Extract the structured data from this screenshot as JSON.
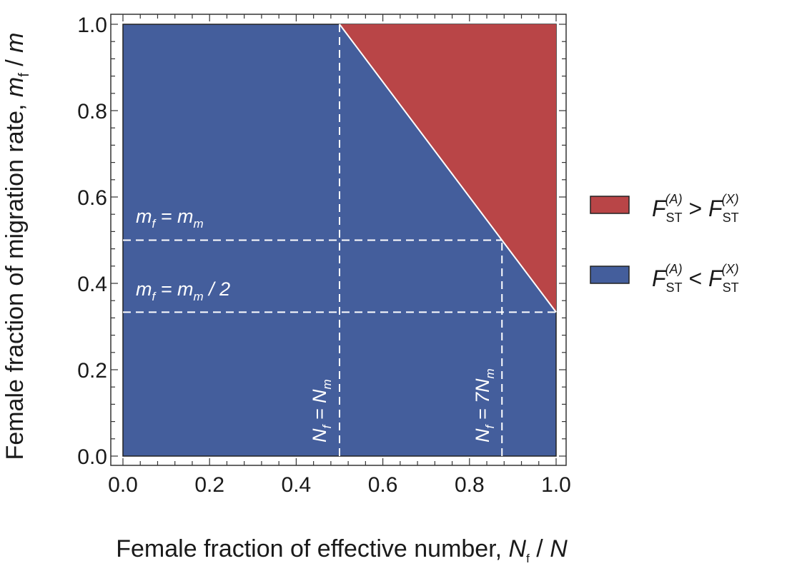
{
  "chart_data": {
    "type": "area",
    "x_axis": {
      "title_main": "Female fraction of effective number, ",
      "title_var": "N",
      "title_var_sub": "f",
      "title_tail": " / ",
      "title_var2": "N",
      "range": [
        0,
        1
      ],
      "ticks": [
        "0.0",
        "0.2",
        "0.4",
        "0.6",
        "0.8",
        "1.0"
      ],
      "tick_values": [
        0,
        0.2,
        0.4,
        0.6,
        0.8,
        1.0
      ]
    },
    "y_axis": {
      "title_main": "Female fraction of migration rate, ",
      "title_var": "m",
      "title_var_sub": "f",
      "title_tail": " / ",
      "title_var2": "m",
      "range": [
        0,
        1
      ],
      "ticks": [
        "0.0",
        "0.2",
        "0.4",
        "0.6",
        "0.8",
        "1.0"
      ],
      "tick_values": [
        0,
        0.2,
        0.4,
        0.6,
        0.8,
        1.0
      ]
    },
    "regions": [
      {
        "name": "FST(A) > FST(X)",
        "color": "#b94547",
        "polygon": [
          [
            0.5,
            1.0
          ],
          [
            1.0,
            1.0
          ],
          [
            1.0,
            0.3333
          ]
        ]
      },
      {
        "name": "FST(A) < FST(X)",
        "color": "#445e9c",
        "fill": "remainder of unit square"
      }
    ],
    "boundary_line": {
      "from": [
        0.5,
        1.0
      ],
      "to": [
        1.0,
        0.3333
      ],
      "color": "#ffffff"
    },
    "reference_lines": [
      {
        "orientation": "horizontal",
        "y": 0.5,
        "x_end": 0.875,
        "label_pre": "m",
        "label_pre_sub": "f",
        "label_mid": " = m",
        "label_mid_sub": "m",
        "label_post": ""
      },
      {
        "orientation": "horizontal",
        "y": 0.3333,
        "x_end": 1.0,
        "label_pre": "m",
        "label_pre_sub": "f",
        "label_mid": " = m",
        "label_mid_sub": "m",
        "label_post": " / 2"
      },
      {
        "orientation": "vertical",
        "x": 0.5,
        "y_end": 1.0,
        "label_pre": "N",
        "label_pre_sub": "f",
        "label_mid": " = N",
        "label_mid_sub": "m",
        "label_post": ""
      },
      {
        "orientation": "vertical",
        "x": 0.875,
        "y_end": 0.5,
        "label_pre": "N",
        "label_pre_sub": "f",
        "label_mid": " = 7N",
        "label_mid_sub": "m",
        "label_post": ""
      }
    ],
    "legend": {
      "placement": "right",
      "items": [
        {
          "color": "#b94547",
          "var": "F",
          "sub": "ST",
          "sup": "(A)",
          "op": " > ",
          "var2": "F",
          "sub2": "ST",
          "sup2": "(X)"
        },
        {
          "color": "#445e9c",
          "var": "F",
          "sub": "ST",
          "sup": "(A)",
          "op": " < ",
          "var2": "F",
          "sub2": "ST",
          "sup2": "(X)"
        }
      ]
    }
  }
}
